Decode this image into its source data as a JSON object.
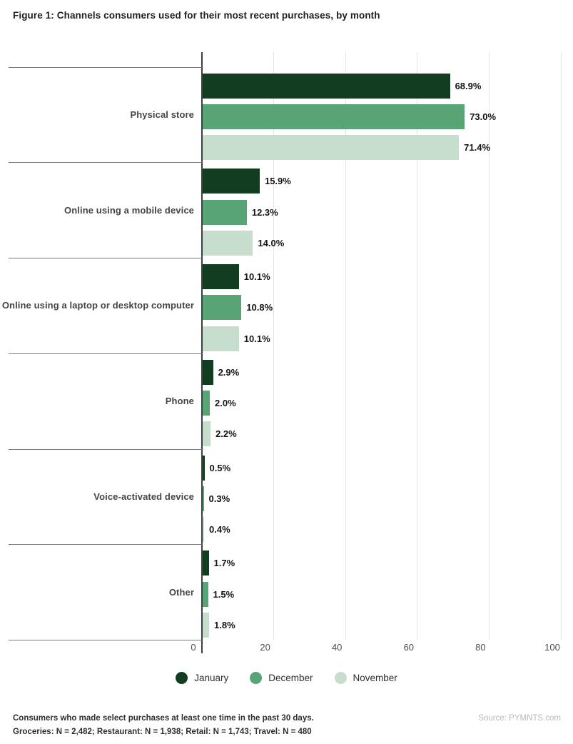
{
  "title": "Figure 1: Channels consumers used for their most recent purchases, by month",
  "chart_data": {
    "type": "bar",
    "orientation": "horizontal",
    "title": "Figure 1: Channels consumers used for their most recent purchases, by month",
    "categories": [
      "Physical store",
      "Online using a mobile device",
      "Online using a laptop or desktop computer",
      "Phone",
      "Voice-activated device",
      "Other"
    ],
    "series": [
      {
        "name": "January",
        "color": "#133d21",
        "values": [
          68.9,
          15.9,
          10.1,
          2.9,
          0.5,
          1.7
        ]
      },
      {
        "name": "December",
        "color": "#58a475",
        "values": [
          73.0,
          12.3,
          10.8,
          2.0,
          0.3,
          1.5
        ]
      },
      {
        "name": "November",
        "color": "#c7decc",
        "values": [
          71.4,
          14.0,
          10.1,
          2.2,
          0.4,
          1.8
        ]
      }
    ],
    "value_suffix": "%",
    "x_ticks": [
      0,
      20,
      40,
      60,
      80,
      100
    ],
    "xlim": [
      0,
      100
    ],
    "grid": true,
    "legend_position": "bottom",
    "legend": [
      "January",
      "December",
      "November"
    ]
  },
  "colors": {
    "axis": "#404040",
    "gridline": "#e3e3e3",
    "divider": "#777777"
  },
  "footer": {
    "note_line1": "Consumers who made select purchases at least one time in the past 30 days.",
    "note_line2": "Groceries: N = 2,482; Restaurant: N = 1,938; Retail: N = 1,743; Travel: N = 480",
    "source": "Source: PYMNTS.com"
  }
}
